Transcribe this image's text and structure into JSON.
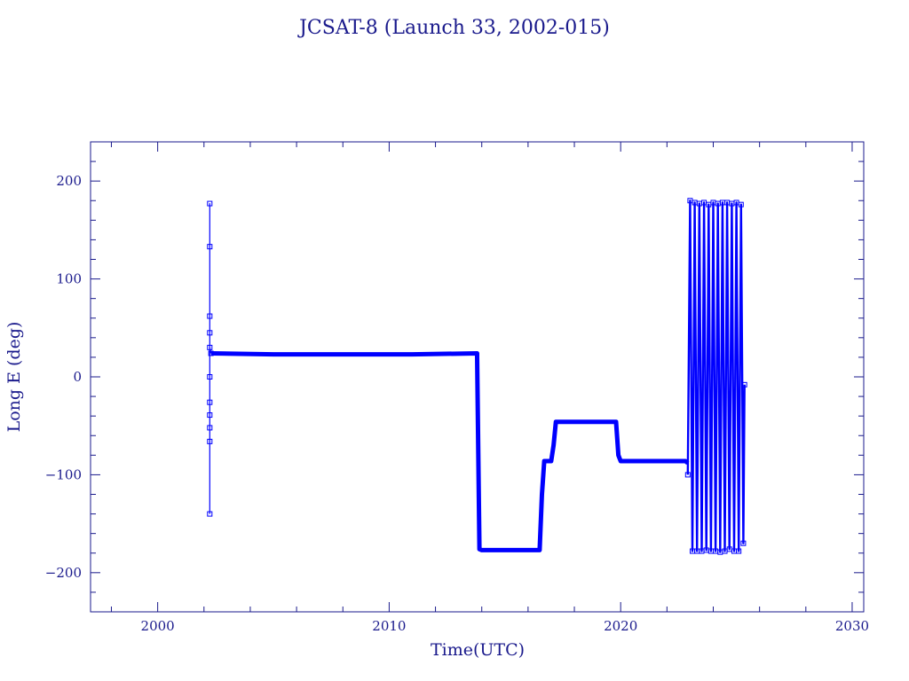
{
  "chart_data": {
    "type": "line",
    "title": "JCSAT-8 (Launch 33, 2002-015)",
    "xlabel": "Time(UTC)",
    "ylabel": "Long E (deg)",
    "xlim": [
      1997.1,
      2030.5
    ],
    "ylim": [
      -240,
      240
    ],
    "xticks": [
      2000,
      2010,
      2020,
      2030
    ],
    "xticks_minor_step": 2,
    "yticks": [
      -200,
      -100,
      0,
      100,
      200
    ],
    "yticks_minor_step": 20,
    "grid": false,
    "series_color": "#0000ff",
    "frame_color": "#1a1a8c",
    "series": [
      {
        "x": [
          2002.25,
          2002.25,
          2002.25,
          2002.25,
          2002.25,
          2002.25,
          2002.25,
          2002.25,
          2002.25,
          2002.25,
          2002.25,
          2002.3
        ],
        "y": [
          -140,
          -66,
          -52,
          -39,
          -26,
          0,
          45,
          62,
          133,
          177,
          30,
          24
        ],
        "style": "line-markers"
      },
      {
        "x": [
          2002.3,
          2005,
          2008,
          2011,
          2013.8,
          2013.8,
          2013.9,
          2014,
          2016.5,
          2016.6,
          2016.7,
          2017.0,
          2017.1,
          2017.2,
          2019.8,
          2019.9,
          2020.0,
          2022.8,
          2022.9
        ],
        "y": [
          24,
          23,
          23,
          23,
          24,
          20,
          -176,
          -177,
          -177,
          -120,
          -86,
          -86,
          -70,
          -46,
          -46,
          -80,
          -86,
          -86,
          -88
        ],
        "style": "thick-line"
      },
      {
        "x": [
          2022.9,
          2023.0,
          2023.1,
          2023.2,
          2023.3,
          2023.4,
          2023.5,
          2023.6,
          2023.7,
          2023.8,
          2023.9,
          2024.0,
          2024.1,
          2024.2,
          2024.3,
          2024.4,
          2024.5,
          2024.6,
          2024.7,
          2024.8,
          2024.9,
          2025.0,
          2025.1,
          2025.2,
          2025.3,
          2025.35
        ],
        "y": [
          -100,
          180,
          -178,
          178,
          -178,
          177,
          -178,
          178,
          -177,
          176,
          -178,
          178,
          -178,
          177,
          -179,
          178,
          -178,
          178,
          -176,
          177,
          -178,
          178,
          -178,
          176,
          -170,
          -8
        ],
        "style": "dense-line"
      }
    ]
  }
}
